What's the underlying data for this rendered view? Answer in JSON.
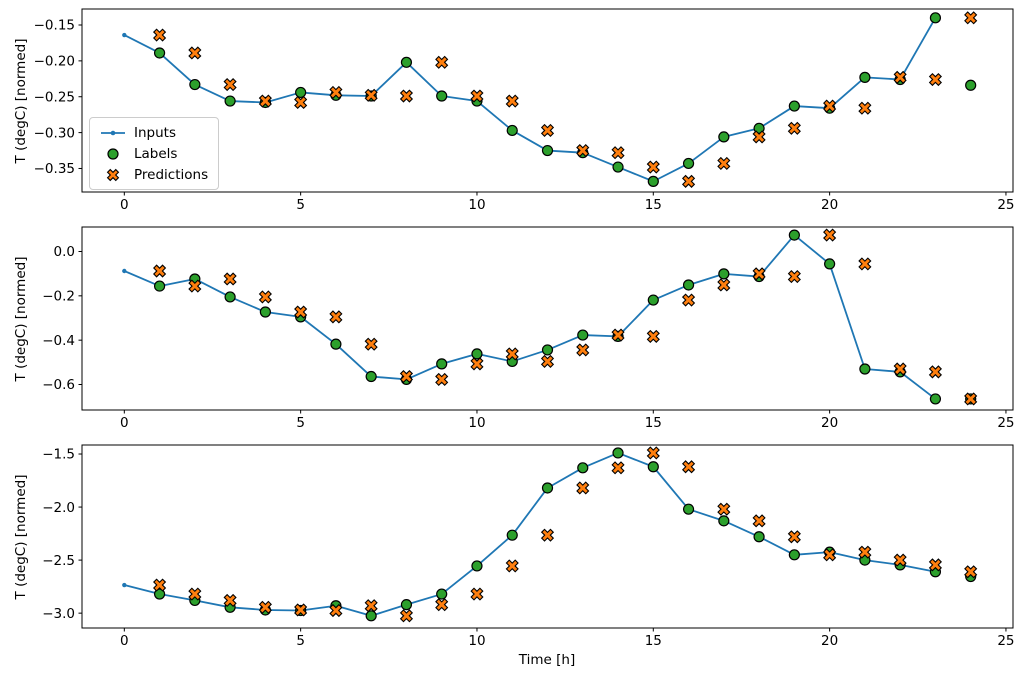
{
  "figure": {
    "background": "#ffffff",
    "xlabel": "Time [h]",
    "ylabel": "T (degC) [normed]",
    "legend": {
      "position": "center left of top subplot",
      "items": [
        {
          "label": "Inputs",
          "marker": "line-dot",
          "color": "#1f77b4"
        },
        {
          "label": "Labels",
          "marker": "circle",
          "color": "#2ca02c",
          "edgecolor": "#000000"
        },
        {
          "label": "Predictions",
          "marker": "X",
          "color": "#ff7f0e",
          "edgecolor": "#000000"
        }
      ]
    }
  },
  "chart_data": [
    {
      "type": "line",
      "title": "",
      "xlabel": "",
      "ylabel": "T (degC) [normed]",
      "xlim": [
        -1.2,
        25.2
      ],
      "ylim": [
        -0.3828,
        -0.1277
      ],
      "xticks": [
        0,
        5,
        10,
        15,
        20,
        25
      ],
      "xtick_labels": [
        "0",
        "5",
        "10",
        "15",
        "20",
        "25"
      ],
      "yticks": [
        -0.15,
        -0.2,
        -0.25,
        -0.3,
        -0.35
      ],
      "ytick_labels": [
        "−0.15",
        "−0.20",
        "−0.25",
        "−0.30",
        "−0.35"
      ],
      "grid": false,
      "series": [
        {
          "name": "Inputs",
          "kind": "line",
          "marker": "dot",
          "color": "#1f77b4",
          "x": [
            0,
            1,
            2,
            3,
            4,
            5,
            6,
            7,
            8,
            9,
            10,
            11,
            12,
            13,
            14,
            15,
            16,
            17,
            18,
            19,
            20,
            21,
            22,
            23
          ],
          "y": [
            -0.164,
            -0.189,
            -0.233,
            -0.256,
            -0.258,
            -0.244,
            -0.248,
            -0.249,
            -0.202,
            -0.249,
            -0.256,
            -0.297,
            -0.325,
            -0.328,
            -0.348,
            -0.368,
            -0.343,
            -0.306,
            -0.294,
            -0.263,
            -0.266,
            -0.223,
            -0.226,
            -0.14
          ]
        },
        {
          "name": "Labels",
          "kind": "scatter",
          "marker": "circle",
          "color": "#2ca02c",
          "edgecolor": "#000000",
          "x": [
            1,
            2,
            3,
            4,
            5,
            6,
            7,
            8,
            9,
            10,
            11,
            12,
            13,
            14,
            15,
            16,
            17,
            18,
            19,
            20,
            21,
            22,
            23,
            24
          ],
          "y": [
            -0.189,
            -0.233,
            -0.256,
            -0.258,
            -0.244,
            -0.248,
            -0.249,
            -0.202,
            -0.249,
            -0.256,
            -0.297,
            -0.325,
            -0.328,
            -0.348,
            -0.368,
            -0.343,
            -0.306,
            -0.294,
            -0.263,
            -0.266,
            -0.223,
            -0.226,
            -0.14,
            -0.234
          ]
        },
        {
          "name": "Predictions",
          "kind": "scatter",
          "marker": "X",
          "color": "#ff7f0e",
          "edgecolor": "#000000",
          "x": [
            1,
            2,
            3,
            4,
            5,
            6,
            7,
            8,
            9,
            10,
            11,
            12,
            13,
            14,
            15,
            16,
            17,
            18,
            19,
            20,
            21,
            22,
            23,
            24
          ],
          "y": [
            -0.164,
            -0.189,
            -0.233,
            -0.256,
            -0.258,
            -0.244,
            -0.248,
            -0.249,
            -0.202,
            -0.249,
            -0.256,
            -0.297,
            -0.325,
            -0.328,
            -0.348,
            -0.368,
            -0.343,
            -0.306,
            -0.294,
            -0.263,
            -0.266,
            -0.223,
            -0.226,
            -0.14
          ]
        }
      ]
    },
    {
      "type": "line",
      "title": "",
      "xlabel": "",
      "ylabel": "T (degC) [normed]",
      "xlim": [
        -1.2,
        25.2
      ],
      "ylim": [
        -0.715,
        0.1105
      ],
      "xticks": [
        0,
        5,
        10,
        15,
        20,
        25
      ],
      "xtick_labels": [
        "0",
        "5",
        "10",
        "15",
        "20",
        "25"
      ],
      "yticks": [
        0.0,
        -0.2,
        -0.4,
        -0.6
      ],
      "ytick_labels": [
        "0.0",
        "−0.2",
        "−0.4",
        "−0.6"
      ],
      "grid": false,
      "series": [
        {
          "name": "Inputs",
          "kind": "line",
          "marker": "dot",
          "color": "#1f77b4",
          "x": [
            0,
            1,
            2,
            3,
            4,
            5,
            6,
            7,
            8,
            9,
            10,
            11,
            12,
            13,
            14,
            15,
            16,
            17,
            18,
            19,
            20,
            21,
            22,
            23
          ],
          "y": [
            -0.088,
            -0.156,
            -0.124,
            -0.205,
            -0.273,
            -0.295,
            -0.418,
            -0.564,
            -0.577,
            -0.507,
            -0.462,
            -0.496,
            -0.444,
            -0.377,
            -0.383,
            -0.219,
            -0.151,
            -0.101,
            -0.113,
            0.074,
            -0.056,
            -0.53,
            -0.543,
            -0.665
          ]
        },
        {
          "name": "Labels",
          "kind": "scatter",
          "marker": "circle",
          "color": "#2ca02c",
          "edgecolor": "#000000",
          "x": [
            1,
            2,
            3,
            4,
            5,
            6,
            7,
            8,
            9,
            10,
            11,
            12,
            13,
            14,
            15,
            16,
            17,
            18,
            19,
            20,
            21,
            22,
            23,
            24
          ],
          "y": [
            -0.156,
            -0.124,
            -0.205,
            -0.273,
            -0.295,
            -0.418,
            -0.564,
            -0.577,
            -0.507,
            -0.462,
            -0.496,
            -0.444,
            -0.377,
            -0.383,
            -0.219,
            -0.151,
            -0.101,
            -0.113,
            0.074,
            -0.056,
            -0.53,
            -0.543,
            -0.665,
            -0.665
          ]
        },
        {
          "name": "Predictions",
          "kind": "scatter",
          "marker": "X",
          "color": "#ff7f0e",
          "edgecolor": "#000000",
          "x": [
            1,
            2,
            3,
            4,
            5,
            6,
            7,
            8,
            9,
            10,
            11,
            12,
            13,
            14,
            15,
            16,
            17,
            18,
            19,
            20,
            21,
            22,
            23,
            24
          ],
          "y": [
            -0.088,
            -0.156,
            -0.124,
            -0.205,
            -0.273,
            -0.295,
            -0.418,
            -0.564,
            -0.577,
            -0.507,
            -0.462,
            -0.496,
            -0.444,
            -0.377,
            -0.383,
            -0.219,
            -0.151,
            -0.101,
            -0.113,
            0.074,
            -0.056,
            -0.53,
            -0.543,
            -0.665
          ]
        }
      ]
    },
    {
      "type": "line",
      "title": "",
      "xlabel": "Time [h]",
      "ylabel": "T (degC) [normed]",
      "xlim": [
        -1.2,
        25.2
      ],
      "ylim": [
        -3.14,
        -1.415
      ],
      "xticks": [
        0,
        5,
        10,
        15,
        20,
        25
      ],
      "xtick_labels": [
        "0",
        "5",
        "10",
        "15",
        "20",
        "25"
      ],
      "yticks": [
        -1.5,
        -2.0,
        -2.5,
        -3.0
      ],
      "ytick_labels": [
        "−1.5",
        "−2.0",
        "−2.5",
        "−3.0"
      ],
      "grid": false,
      "series": [
        {
          "name": "Inputs",
          "kind": "line",
          "marker": "dot",
          "color": "#1f77b4",
          "x": [
            0,
            1,
            2,
            3,
            4,
            5,
            6,
            7,
            8,
            9,
            10,
            11,
            12,
            13,
            14,
            15,
            16,
            17,
            18,
            19,
            20,
            21,
            22,
            23
          ],
          "y": [
            -2.735,
            -2.82,
            -2.88,
            -2.945,
            -2.97,
            -2.975,
            -2.93,
            -3.025,
            -2.92,
            -2.82,
            -2.555,
            -2.265,
            -1.82,
            -1.63,
            -1.49,
            -1.62,
            -2.02,
            -2.13,
            -2.28,
            -2.45,
            -2.425,
            -2.5,
            -2.545,
            -2.61
          ]
        },
        {
          "name": "Labels",
          "kind": "scatter",
          "marker": "circle",
          "color": "#2ca02c",
          "edgecolor": "#000000",
          "x": [
            1,
            2,
            3,
            4,
            5,
            6,
            7,
            8,
            9,
            10,
            11,
            12,
            13,
            14,
            15,
            16,
            17,
            18,
            19,
            20,
            21,
            22,
            23,
            24
          ],
          "y": [
            -2.82,
            -2.88,
            -2.945,
            -2.97,
            -2.975,
            -2.93,
            -3.025,
            -2.92,
            -2.82,
            -2.555,
            -2.265,
            -1.82,
            -1.63,
            -1.49,
            -1.62,
            -2.02,
            -2.13,
            -2.28,
            -2.45,
            -2.425,
            -2.5,
            -2.545,
            -2.61,
            -2.655
          ]
        },
        {
          "name": "Predictions",
          "kind": "scatter",
          "marker": "X",
          "color": "#ff7f0e",
          "edgecolor": "#000000",
          "x": [
            1,
            2,
            3,
            4,
            5,
            6,
            7,
            8,
            9,
            10,
            11,
            12,
            13,
            14,
            15,
            16,
            17,
            18,
            19,
            20,
            21,
            22,
            23,
            24
          ],
          "y": [
            -2.735,
            -2.82,
            -2.88,
            -2.945,
            -2.97,
            -2.975,
            -2.93,
            -3.025,
            -2.92,
            -2.82,
            -2.555,
            -2.265,
            -1.82,
            -1.63,
            -1.49,
            -1.62,
            -2.02,
            -2.13,
            -2.28,
            -2.45,
            -2.425,
            -2.5,
            -2.545,
            -2.61
          ]
        }
      ]
    }
  ]
}
